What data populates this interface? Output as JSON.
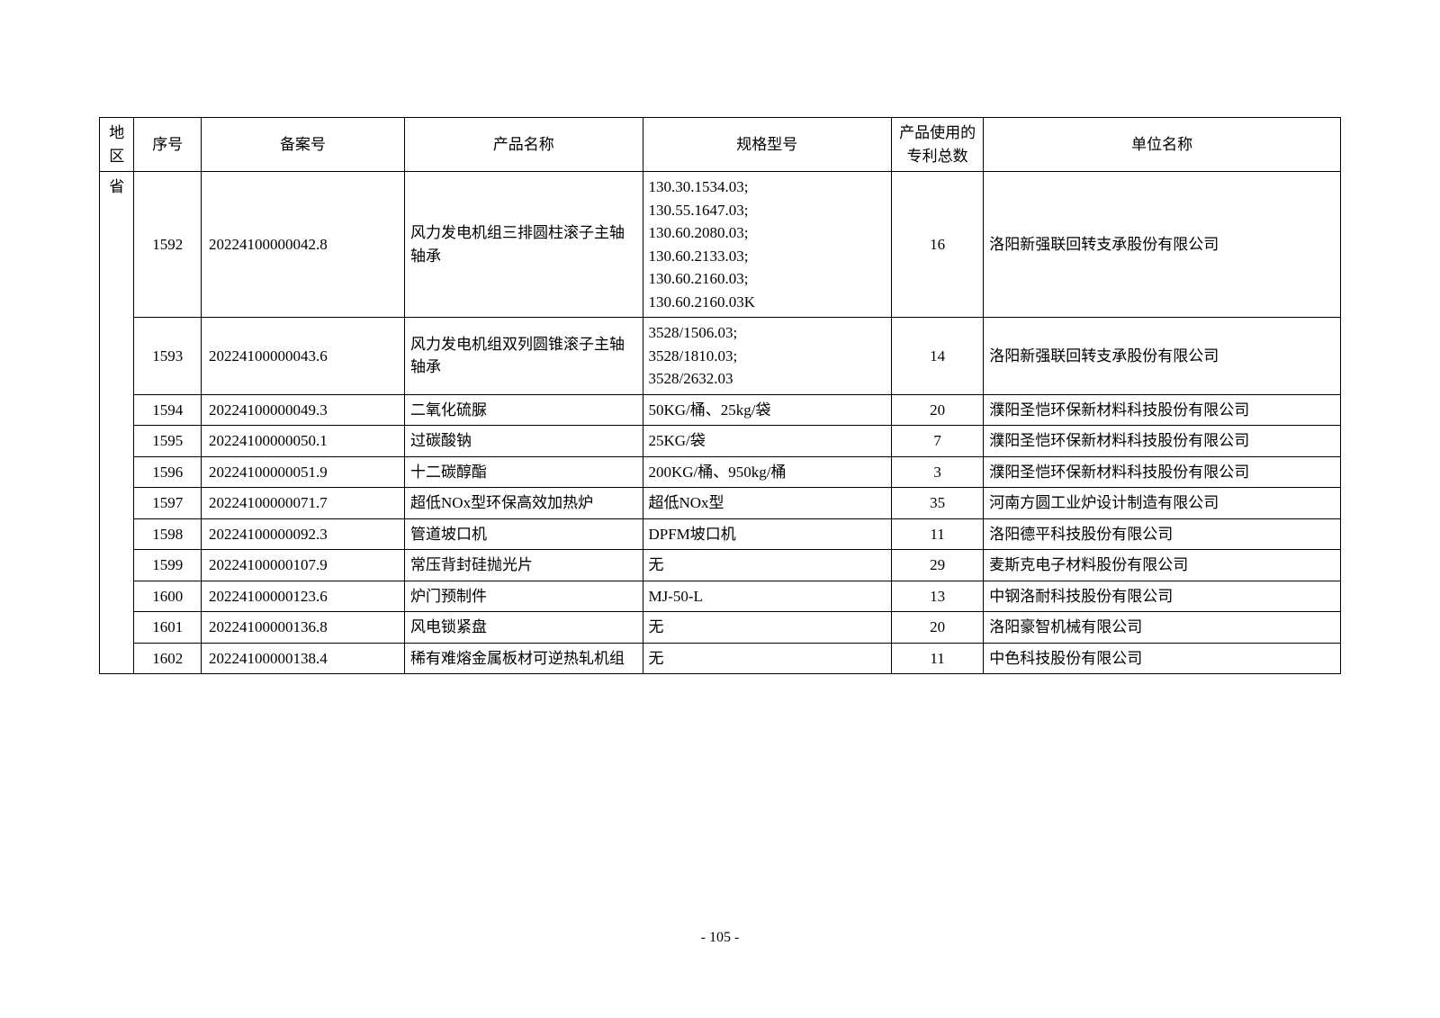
{
  "table": {
    "headers": {
      "region": "地区",
      "seq": "序号",
      "filing": "备案号",
      "product": "产品名称",
      "spec": "规格型号",
      "patent": "产品使用的专利总数",
      "unit": "单位名称"
    },
    "region_value": "省",
    "rows": [
      {
        "seq": "1592",
        "filing": "20224100000042.8",
        "product": "风力发电机组三排圆柱滚子主轴轴承",
        "spec": "130.30.1534.03;\n130.55.1647.03;\n130.60.2080.03;\n130.60.2133.03;\n130.60.2160.03;\n130.60.2160.03K",
        "patent": "16",
        "unit": "洛阳新强联回转支承股份有限公司"
      },
      {
        "seq": "1593",
        "filing": "20224100000043.6",
        "product": "风力发电机组双列圆锥滚子主轴轴承",
        "spec": "3528/1506.03;\n3528/1810.03;\n3528/2632.03",
        "patent": "14",
        "unit": "洛阳新强联回转支承股份有限公司"
      },
      {
        "seq": "1594",
        "filing": "20224100000049.3",
        "product": "二氧化硫脲",
        "spec": "50KG/桶、25kg/袋",
        "patent": "20",
        "unit": "濮阳圣恺环保新材料科技股份有限公司"
      },
      {
        "seq": "1595",
        "filing": "20224100000050.1",
        "product": "过碳酸钠",
        "spec": "25KG/袋",
        "patent": "7",
        "unit": "濮阳圣恺环保新材料科技股份有限公司"
      },
      {
        "seq": "1596",
        "filing": "20224100000051.9",
        "product": "十二碳醇酯",
        "spec": "200KG/桶、950kg/桶",
        "patent": "3",
        "unit": "濮阳圣恺环保新材料科技股份有限公司"
      },
      {
        "seq": "1597",
        "filing": "20224100000071.7",
        "product": "超低NOx型环保高效加热炉",
        "spec": "超低NOx型",
        "patent": "35",
        "unit": "河南方圆工业炉设计制造有限公司"
      },
      {
        "seq": "1598",
        "filing": "20224100000092.3",
        "product": "管道坡口机",
        "spec": "DPFM坡口机",
        "patent": "11",
        "unit": "洛阳德平科技股份有限公司"
      },
      {
        "seq": "1599",
        "filing": "20224100000107.9",
        "product": "常压背封硅抛光片",
        "spec": "无",
        "patent": "29",
        "unit": "麦斯克电子材料股份有限公司"
      },
      {
        "seq": "1600",
        "filing": "20224100000123.6",
        "product": "炉门预制件",
        "spec": "MJ-50-L",
        "patent": "13",
        "unit": "中钢洛耐科技股份有限公司"
      },
      {
        "seq": "1601",
        "filing": "20224100000136.8",
        "product": "风电锁紧盘",
        "spec": "无",
        "patent": "20",
        "unit": "洛阳豪智机械有限公司"
      },
      {
        "seq": "1602",
        "filing": "20224100000138.4",
        "product": "稀有难熔金属板材可逆热轧机组",
        "spec": "无",
        "patent": "11",
        "unit": "中色科技股份有限公司"
      }
    ]
  },
  "page_number": "- 105 -",
  "styling": {
    "background_color": "#ffffff",
    "border_color": "#000000",
    "font_size": 17,
    "font_family": "SimSun",
    "line_height": 1.5
  }
}
